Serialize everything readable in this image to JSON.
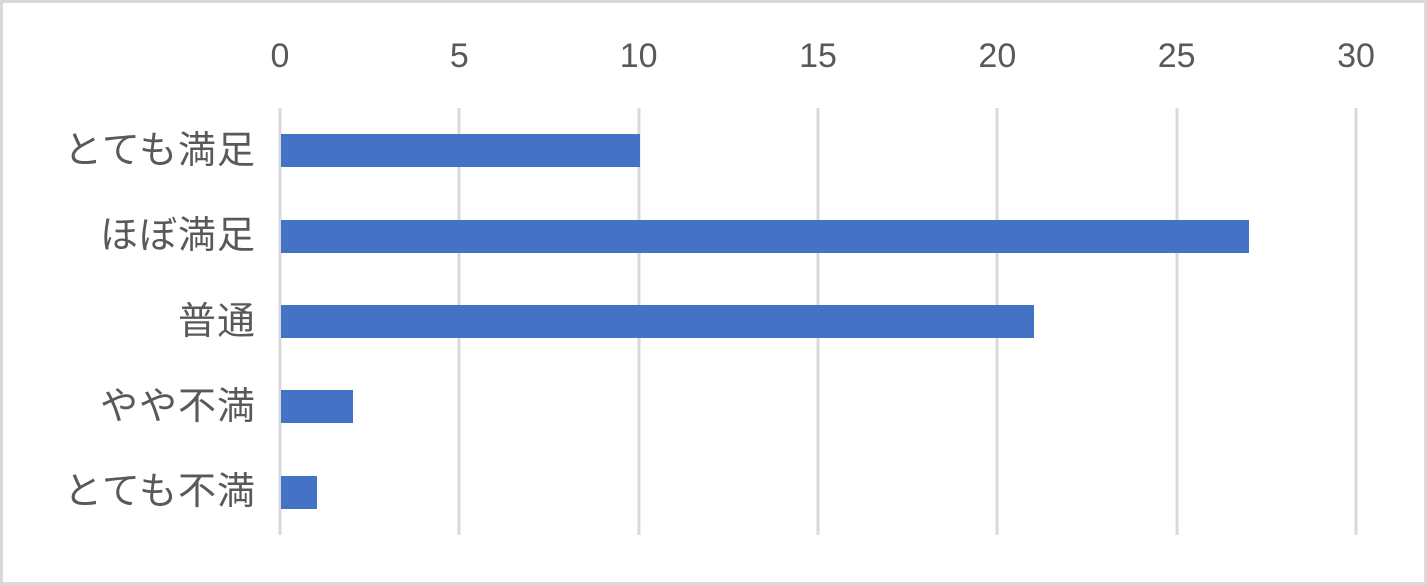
{
  "chart_data": {
    "type": "bar",
    "orientation": "horizontal",
    "title": "",
    "categories": [
      "とても満足",
      "ほぼ満足",
      "普通",
      "やや不満",
      "とても不満"
    ],
    "values": [
      10,
      27,
      21,
      2,
      1
    ],
    "x_ticks": [
      0,
      5,
      10,
      15,
      20,
      25,
      30
    ],
    "xlim": [
      0,
      30
    ],
    "grid": true,
    "legend": false,
    "axis_position": "top",
    "colors": {
      "bar": "#4472c4",
      "gridline": "#d9d9d9",
      "frame_border": "#d9d9d9",
      "text": "#595959",
      "background": "#ffffff"
    }
  }
}
